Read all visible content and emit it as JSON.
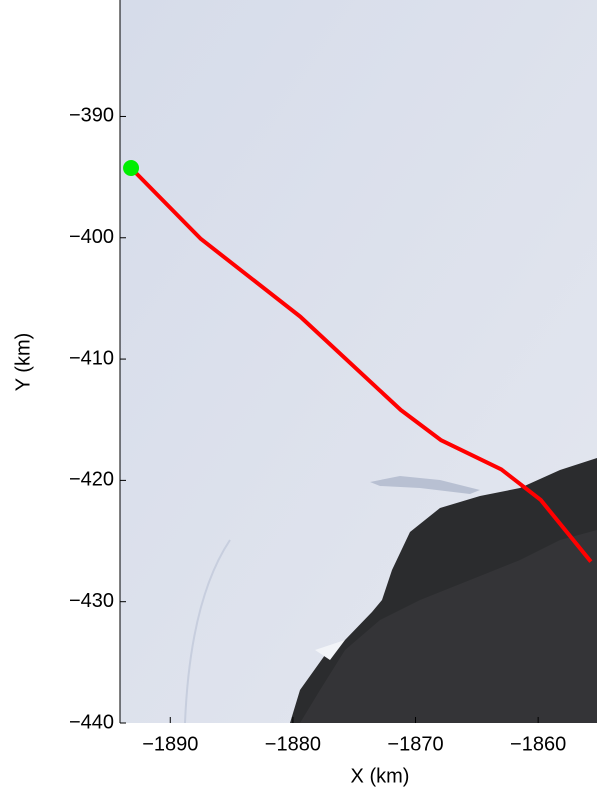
{
  "chart_data": {
    "type": "line",
    "xlabel": "X (km)",
    "ylabel": "Y (km)",
    "xlim": [
      -1894.1,
      -1855.2
    ],
    "ylim": [
      -440,
      -380.4
    ],
    "xticks": [
      {
        "value": -1890,
        "label": "−1890"
      },
      {
        "value": -1880,
        "label": "−1880"
      },
      {
        "value": -1870,
        "label": "−1870"
      },
      {
        "value": -1860,
        "label": "−1860"
      }
    ],
    "yticks": [
      {
        "value": -440,
        "label": "−440"
      },
      {
        "value": -430,
        "label": "−430"
      },
      {
        "value": -420,
        "label": "−420"
      },
      {
        "value": -410,
        "label": "−410"
      },
      {
        "value": -400,
        "label": "−400"
      },
      {
        "value": -390,
        "label": "−390"
      }
    ],
    "series": [
      {
        "color": "#ff0000",
        "mode": "line",
        "x": [
          -1893.2,
          -1887.5,
          -1879.4,
          -1871.2,
          -1867.9,
          -1863.0,
          -1859.8,
          -1855.7
        ],
        "values": [
          -394.25,
          -400.1,
          -406.5,
          -414.2,
          -416.7,
          -419.1,
          -421.6,
          -426.7
        ]
      },
      {
        "color": "#00ee00",
        "mode": "marker",
        "x": [
          -1893.2
        ],
        "values": [
          -394.25
        ]
      }
    ]
  }
}
